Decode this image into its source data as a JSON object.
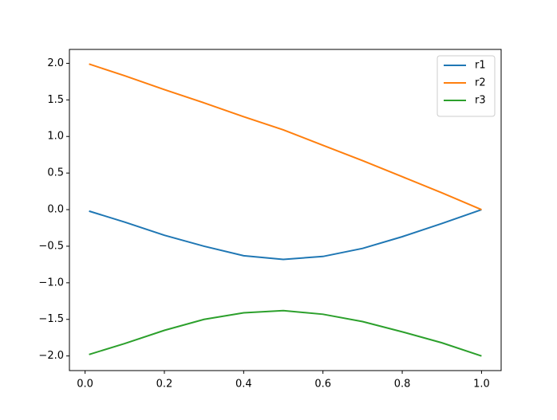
{
  "chart_data": {
    "type": "line",
    "x": [
      0.01,
      0.1,
      0.2,
      0.3,
      0.4,
      0.5,
      0.6,
      0.7,
      0.8,
      0.9,
      1.0
    ],
    "series": [
      {
        "name": "r1",
        "color": "#1f77b4",
        "values": [
          -0.02,
          -0.17,
          -0.35,
          -0.5,
          -0.63,
          -0.68,
          -0.64,
          -0.53,
          -0.37,
          -0.19,
          0
        ]
      },
      {
        "name": "r2",
        "color": "#ff7f0e",
        "values": [
          1.99,
          1.83,
          1.64,
          1.46,
          1.27,
          1.09,
          0.88,
          0.67,
          0.45,
          0.23,
          0
        ]
      },
      {
        "name": "r3",
        "color": "#2ca02c",
        "values": [
          -1.98,
          -1.83,
          -1.65,
          -1.5,
          -1.41,
          -1.38,
          -1.43,
          -1.53,
          -1.67,
          -1.82,
          -2.0
        ]
      }
    ],
    "xlim": [
      -0.0395,
      1.0495
    ],
    "ylim": [
      -2.2,
      2.19
    ],
    "xticks": [
      {
        "value": 0,
        "label": "0.0"
      },
      0.2,
      0.4,
      0.6,
      0.8,
      {
        "value": 1,
        "label": "1.0"
      }
    ],
    "yticks": [
      {
        "value": -2,
        "label": "−2.0"
      },
      {
        "value": -1.5,
        "label": "−1.5"
      },
      {
        "value": -1,
        "label": "−1.0"
      },
      {
        "value": -0.5,
        "label": "−0.5"
      },
      {
        "value": 0,
        "label": "0.0"
      },
      0.5,
      {
        "value": 1,
        "label": "1.0"
      },
      1.5,
      {
        "value": 2,
        "label": "2.0"
      }
    ],
    "legend": "upper right"
  }
}
